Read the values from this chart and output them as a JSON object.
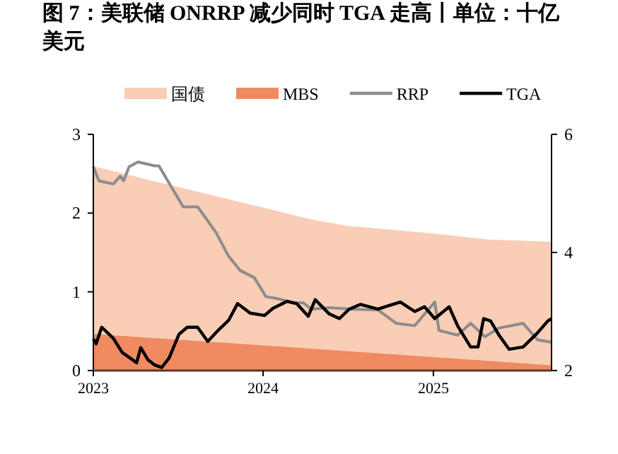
{
  "chart_data": {
    "type": "line",
    "title": "图 7：美联储 ONRRP 减少同时 TGA 走高丨单位：十亿美元",
    "xlim": [
      "2023-01-01",
      "2025-09-12"
    ],
    "xticks": [
      "2023",
      "2024",
      "2025"
    ],
    "ylim": [
      0,
      3
    ],
    "yticks": [
      0,
      1,
      2,
      3
    ],
    "y2lim": [
      2,
      6
    ],
    "y2ticks": [
      2,
      4,
      6
    ],
    "legend": "top",
    "grid": false,
    "series": [
      {
        "name": "国债",
        "type": "area",
        "axis": "y2",
        "color": "#f9cdb6",
        "x": [
          "2023-01-01",
          "2023-07-01",
          "2024-01-01",
          "2024-04-13",
          "2024-07-01",
          "2025-01-01",
          "2025-05-01",
          "2025-09-12"
        ],
        "values": [
          5.46,
          5.11,
          4.76,
          4.56,
          4.45,
          4.32,
          4.22,
          4.18
        ]
      },
      {
        "name": "MBS",
        "type": "area",
        "axis": "y2",
        "color": "#f08a60",
        "x": [
          "2023-01-01",
          "2024-04-13",
          "2025-09-12"
        ],
        "values": [
          2.62,
          2.37,
          2.09
        ]
      },
      {
        "name": "RRP",
        "color": "#8c8c8c",
        "x": [
          "2023-01-01",
          "2023-01-13",
          "2023-02-13",
          "2023-02-28",
          "2023-03-07",
          "2023-03-19",
          "2023-04-07",
          "2023-05-13",
          "2023-05-22",
          "2023-06-13",
          "2023-07-13",
          "2023-08-13",
          "2023-08-28",
          "2023-09-22",
          "2023-10-19",
          "2023-11-13",
          "2023-12-13",
          "2024-01-07",
          "2024-02-04",
          "2024-03-04",
          "2024-03-28",
          "2024-04-13",
          "2024-05-22",
          "2024-07-13",
          "2024-09-04",
          "2024-10-13",
          "2024-11-22",
          "2025-01-04",
          "2025-01-13",
          "2025-02-22",
          "2025-03-22",
          "2025-04-22",
          "2025-05-22",
          "2025-07-13",
          "2025-08-13",
          "2025-09-12"
        ],
        "values": [
          2.59,
          2.41,
          2.37,
          2.47,
          2.41,
          2.59,
          2.65,
          2.6,
          2.6,
          2.38,
          2.08,
          2.08,
          1.96,
          1.75,
          1.45,
          1.27,
          1.18,
          0.94,
          0.91,
          0.86,
          0.86,
          0.78,
          0.8,
          0.78,
          0.77,
          0.6,
          0.57,
          0.87,
          0.51,
          0.45,
          0.6,
          0.43,
          0.54,
          0.6,
          0.39,
          0.36
        ]
      },
      {
        "name": "TGA",
        "color": "#000000",
        "x": [
          "2023-01-01",
          "2023-01-07",
          "2023-01-19",
          "2023-02-13",
          "2023-03-04",
          "2023-04-04",
          "2023-04-13",
          "2023-04-28",
          "2023-05-13",
          "2023-05-28",
          "2023-06-13",
          "2023-07-04",
          "2023-07-22",
          "2023-08-13",
          "2023-09-04",
          "2023-09-28",
          "2023-10-19",
          "2023-11-07",
          "2023-12-04",
          "2024-01-04",
          "2024-01-22",
          "2024-02-22",
          "2024-03-13",
          "2024-04-07",
          "2024-04-22",
          "2024-05-22",
          "2024-06-13",
          "2024-07-04",
          "2024-07-28",
          "2024-09-04",
          "2024-09-19",
          "2024-10-22",
          "2024-11-22",
          "2024-12-13",
          "2025-01-04",
          "2025-02-04",
          "2025-02-22",
          "2025-03-22",
          "2025-04-07",
          "2025-04-19",
          "2025-05-04",
          "2025-05-22",
          "2025-06-13",
          "2025-07-13",
          "2025-08-13",
          "2025-09-04",
          "2025-09-12"
        ],
        "values": [
          0.4,
          0.34,
          0.55,
          0.41,
          0.23,
          0.1,
          0.29,
          0.14,
          0.07,
          0.04,
          0.16,
          0.46,
          0.55,
          0.55,
          0.37,
          0.52,
          0.64,
          0.85,
          0.73,
          0.7,
          0.79,
          0.88,
          0.85,
          0.69,
          0.9,
          0.72,
          0.66,
          0.78,
          0.84,
          0.78,
          0.81,
          0.87,
          0.75,
          0.81,
          0.66,
          0.81,
          0.57,
          0.3,
          0.3,
          0.66,
          0.63,
          0.45,
          0.27,
          0.3,
          0.48,
          0.63,
          0.66
        ]
      }
    ]
  }
}
